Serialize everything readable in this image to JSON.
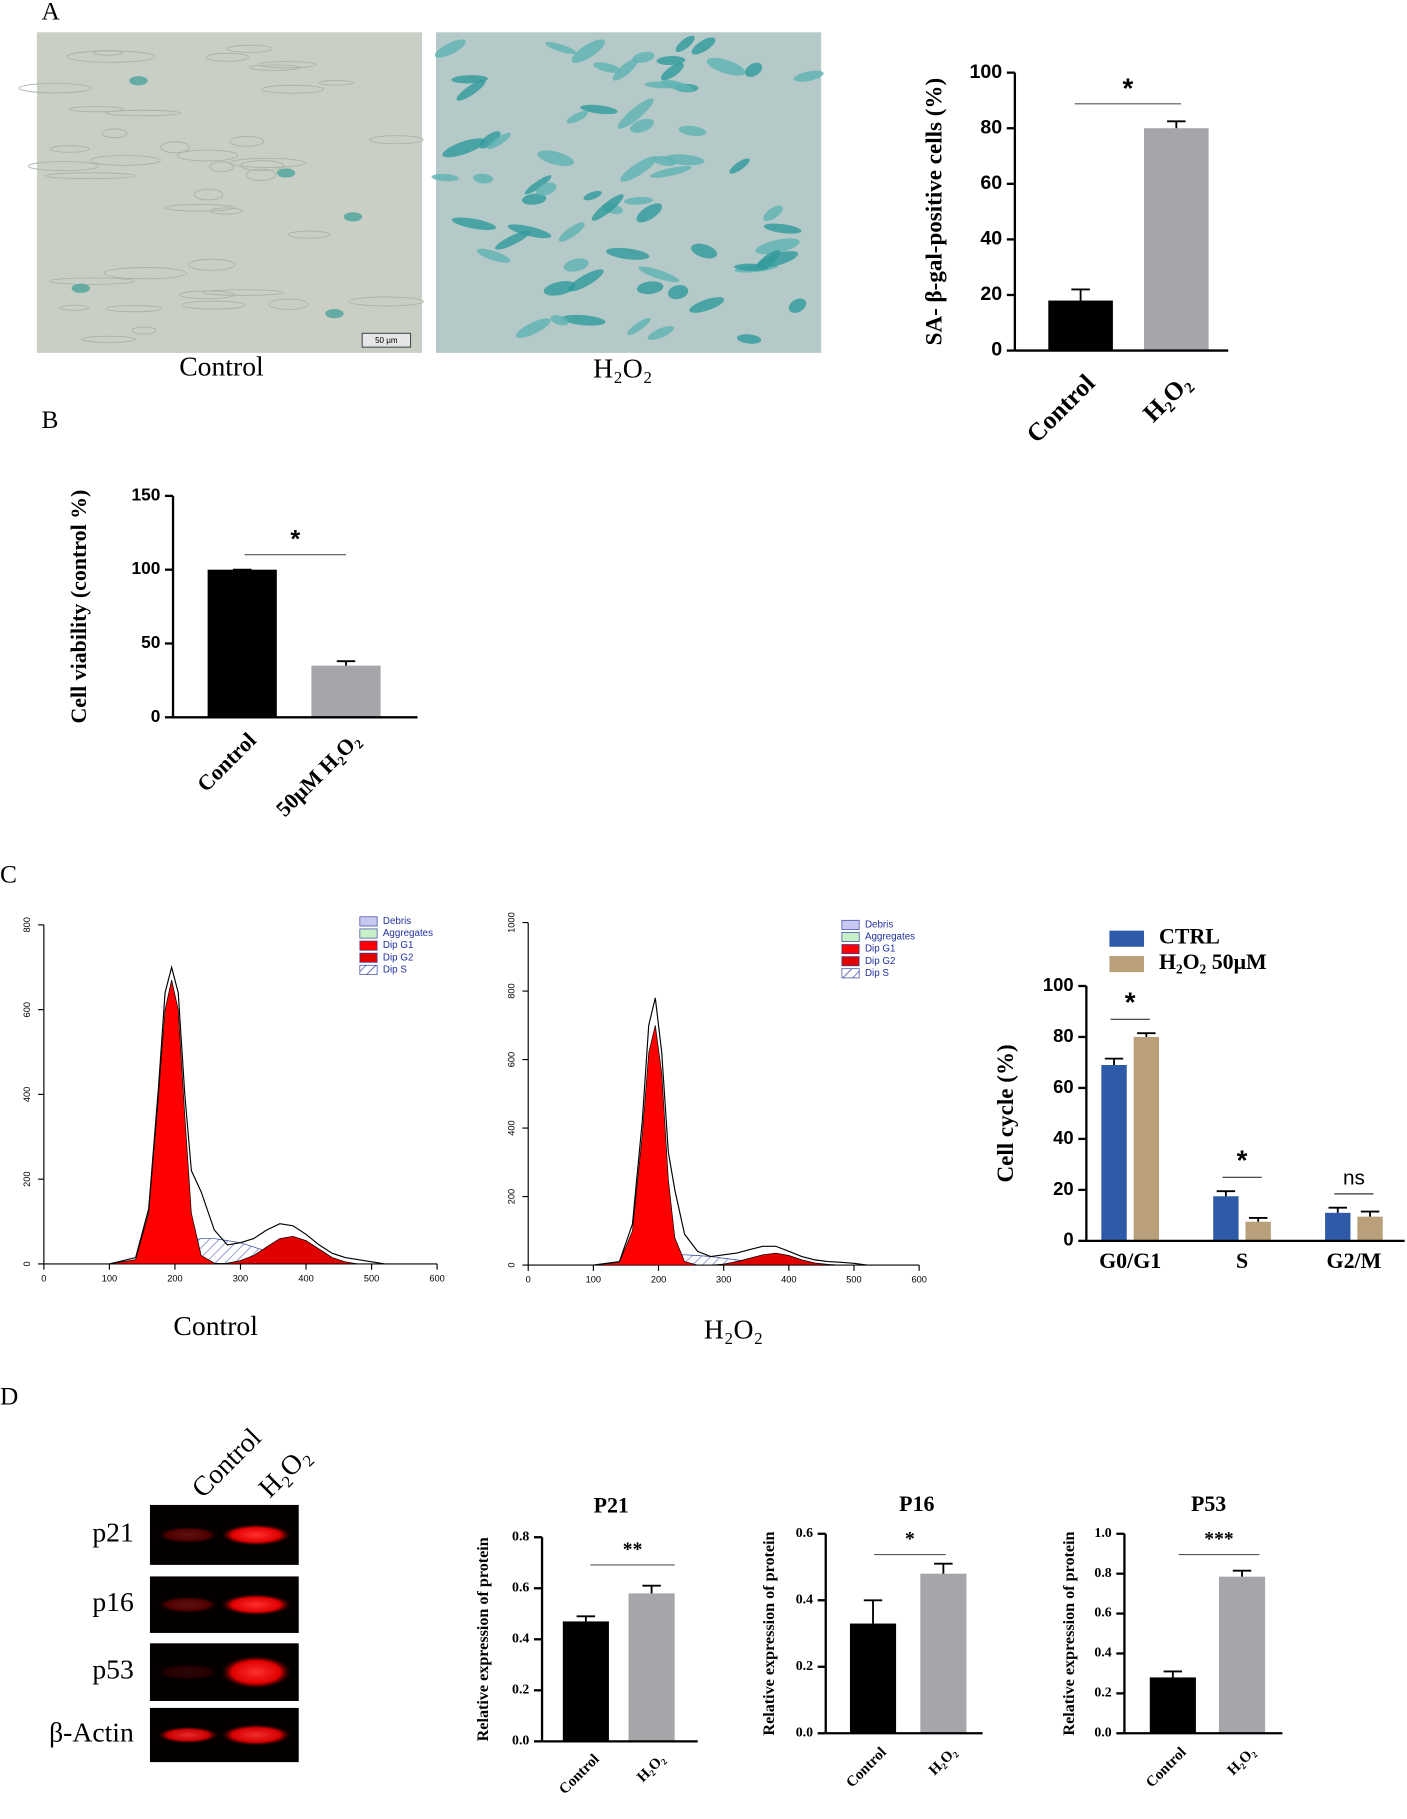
{
  "panel_labels": [
    "A",
    "B",
    "C",
    "D"
  ],
  "micrographs": {
    "captions": [
      "Control",
      "H₂O₂"
    ],
    "scale_bar": "50 μm"
  },
  "western_blot": {
    "lanes": [
      "Control",
      "H₂O₂"
    ],
    "rows": [
      "p21",
      "p16",
      "p53",
      "β-Actin"
    ]
  },
  "chart_data": [
    {
      "type": "bar",
      "y_label": "SA- β-gal-positive cells (%)",
      "categories": [
        "Control",
        "H₂O₂"
      ],
      "values": [
        18,
        80
      ],
      "errors": [
        4,
        2.5
      ],
      "colors": [
        "#000000",
        "#a6a5aa"
      ],
      "ylim": [
        0,
        100
      ],
      "yticks": [
        0,
        20,
        40,
        60,
        80,
        100
      ],
      "significance": "*"
    },
    {
      "type": "bar",
      "y_label": "Cell viability (control %)",
      "categories": [
        "Control",
        "50μM H₂O₂"
      ],
      "values": [
        100,
        35
      ],
      "errors": [
        0,
        3
      ],
      "colors": [
        "#000000",
        "#a6a5aa"
      ],
      "ylim": [
        0,
        150
      ],
      "yticks": [
        0,
        50,
        100,
        150
      ],
      "significance": "*"
    },
    {
      "type": "area",
      "caption": "Control",
      "x": [
        100,
        140,
        160,
        175,
        185,
        195,
        205,
        215,
        225,
        240,
        260,
        280,
        300,
        320,
        340,
        360,
        380,
        400,
        420,
        440,
        460,
        480,
        500,
        520
      ],
      "extra_legend": [
        {
          "name": "Debris",
          "color": "#c8c8f0"
        },
        {
          "name": "Aggregates",
          "color": "#c8f0c8"
        }
      ],
      "series": [
        {
          "name": "Dip G1",
          "color": "#ff0000",
          "values": [
            0,
            10,
            120,
            400,
            600,
            670,
            600,
            350,
            120,
            20,
            2,
            0,
            0,
            0,
            0,
            0,
            0,
            0,
            0,
            0,
            0,
            0,
            0,
            0
          ]
        },
        {
          "name": "Dip G2",
          "color": "#e00000",
          "values": [
            0,
            0,
            0,
            0,
            0,
            0,
            0,
            0,
            0,
            0,
            0,
            2,
            8,
            20,
            40,
            60,
            65,
            55,
            35,
            15,
            5,
            0,
            0,
            0
          ]
        },
        {
          "name": "Dip S",
          "color": "#3040a0",
          "values": [
            0,
            0,
            5,
            15,
            25,
            35,
            45,
            50,
            55,
            60,
            60,
            55,
            50,
            40,
            30,
            20,
            12,
            6,
            2,
            0,
            0,
            0,
            0,
            0
          ]
        },
        {
          "color": "#000000",
          "values": [
            0,
            15,
            130,
            420,
            640,
            700,
            640,
            400,
            220,
            170,
            80,
            45,
            50,
            60,
            80,
            95,
            90,
            70,
            45,
            25,
            15,
            10,
            5,
            0
          ]
        }
      ],
      "xlim": [
        0,
        600
      ],
      "xticks": [
        0,
        100,
        200,
        300,
        400,
        500,
        600
      ],
      "ylim": [
        0,
        800
      ],
      "yticks": [
        0,
        200,
        400,
        600,
        800
      ]
    },
    {
      "type": "area",
      "caption": "H₂O₂",
      "x": [
        100,
        140,
        160,
        175,
        185,
        195,
        205,
        215,
        225,
        240,
        260,
        280,
        300,
        320,
        340,
        360,
        380,
        400,
        420,
        440,
        460,
        480,
        500,
        520
      ],
      "extra_legend": [
        {
          "name": "Debris",
          "color": "#c8c8f0"
        },
        {
          "name": "Aggregates",
          "color": "#c8f0c8"
        }
      ],
      "series": [
        {
          "name": "Dip G1",
          "color": "#ff0000",
          "values": [
            0,
            8,
            100,
            380,
            620,
            700,
            560,
            250,
            80,
            10,
            0,
            0,
            0,
            0,
            0,
            0,
            0,
            0,
            0,
            0,
            0,
            0,
            0,
            0
          ]
        },
        {
          "name": "Dip G2",
          "color": "#e00000",
          "values": [
            0,
            0,
            0,
            0,
            0,
            0,
            0,
            0,
            0,
            0,
            0,
            0,
            3,
            10,
            20,
            30,
            35,
            28,
            15,
            6,
            2,
            0,
            0,
            0
          ]
        },
        {
          "name": "Dip S",
          "color": "#3040a0",
          "values": [
            0,
            0,
            3,
            10,
            15,
            20,
            25,
            28,
            30,
            30,
            28,
            25,
            20,
            15,
            10,
            6,
            3,
            1,
            0,
            0,
            0,
            0,
            0,
            0
          ]
        },
        {
          "color": "#000000",
          "values": [
            0,
            10,
            120,
            420,
            700,
            780,
            620,
            330,
            220,
            90,
            40,
            25,
            30,
            35,
            45,
            55,
            55,
            40,
            25,
            15,
            10,
            8,
            5,
            0
          ]
        }
      ],
      "xlim": [
        0,
        600
      ],
      "xticks": [
        0,
        100,
        200,
        300,
        400,
        500,
        600
      ],
      "ylim": [
        0,
        1000
      ],
      "yticks": [
        0,
        200,
        400,
        600,
        800,
        1000
      ]
    },
    {
      "type": "grouped-bar",
      "y_label": "Cell cycle (%)",
      "categories": [
        "G0/G1",
        "S",
        "G2/M"
      ],
      "series": [
        {
          "name": "CTRL",
          "color": "#2f5aa8",
          "values": [
            69,
            17.5,
            11
          ],
          "errors": [
            2.5,
            2,
            2
          ]
        },
        {
          "name": "H₂O₂ 50μM",
          "color": "#b9a07a",
          "values": [
            80,
            7.5,
            9.5
          ],
          "errors": [
            1.5,
            1.5,
            2
          ]
        }
      ],
      "ylim": [
        0,
        100
      ],
      "yticks": [
        0,
        20,
        40,
        60,
        80,
        100
      ],
      "significance": [
        "*",
        "*",
        "ns"
      ]
    },
    {
      "type": "bar",
      "title": "P21",
      "y_label": "Relative expression of protein",
      "categories": [
        "Control",
        "H₂O₂"
      ],
      "values": [
        0.47,
        0.58
      ],
      "errors": [
        0.02,
        0.03
      ],
      "colors": [
        "#000000",
        "#a6a5aa"
      ],
      "ylim": [
        0,
        0.8
      ],
      "yticks": [
        {
          "value": 0,
          "label": "0.0"
        },
        0.2,
        0.4,
        0.6,
        0.8
      ],
      "significance": "**"
    },
    {
      "type": "bar",
      "title": "P16",
      "y_label": "Relative expression of protein",
      "categories": [
        "Control",
        "H₂O₂"
      ],
      "values": [
        0.33,
        0.48
      ],
      "errors": [
        0.07,
        0.03
      ],
      "colors": [
        "#000000",
        "#a6a5aa"
      ],
      "ylim": [
        0,
        0.6
      ],
      "yticks": [
        {
          "value": 0,
          "label": "0.0"
        },
        0.2,
        0.4,
        0.6
      ],
      "significance": "*"
    },
    {
      "type": "bar",
      "title": "P53",
      "y_label": "Relative expression of protein",
      "categories": [
        "Control",
        "H₂O₂"
      ],
      "values": [
        0.28,
        0.785
      ],
      "errors": [
        0.03,
        0.03
      ],
      "colors": [
        "#000000",
        "#a6a5aa"
      ],
      "ylim": [
        0,
        1
      ],
      "yticks": [
        {
          "value": 0,
          "label": "0.0"
        },
        0.2,
        0.4,
        0.6,
        0.8,
        {
          "value": 1,
          "label": "1.0"
        }
      ],
      "significance": "***"
    }
  ]
}
